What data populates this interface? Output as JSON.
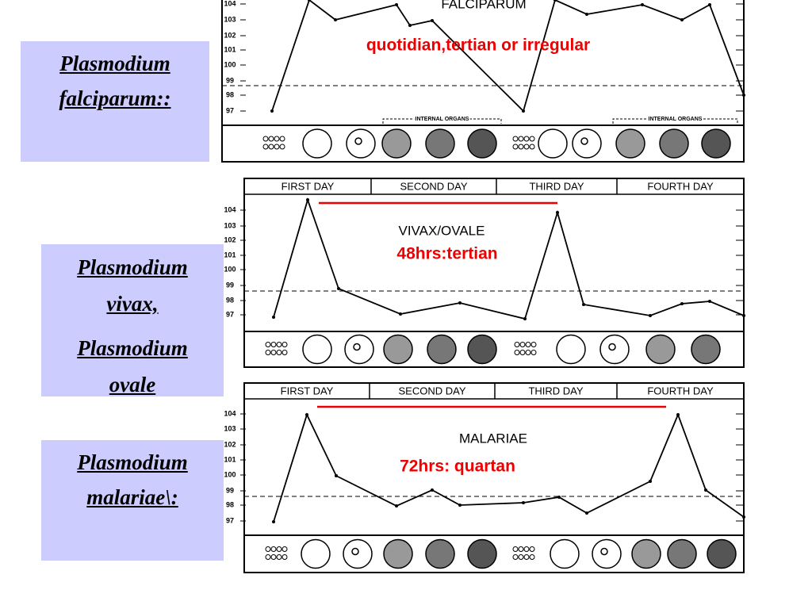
{
  "labels": [
    {
      "lines": [
        "Plasmodium",
        "falciparum::"
      ]
    },
    {
      "lines": [
        "Plasmodium",
        "vivax,",
        "Plasmodium",
        "ovale"
      ]
    },
    {
      "lines": [
        "Plasmodium",
        "malariae\\:"
      ]
    }
  ],
  "panels": [
    {
      "title": "FALCIPARUM",
      "pattern": "quotidian,tertian or irregular",
      "organs": [
        "INTERNAL ORGANS",
        "INTERNAL ORGANS"
      ],
      "ticks": [
        "104",
        "103",
        "102",
        "101",
        "100",
        "99",
        "98",
        "97"
      ]
    },
    {
      "days": [
        "FIRST DAY",
        "SECOND DAY",
        "THIRD DAY",
        "FOURTH DAY"
      ],
      "title": "VIVAX/OVALE",
      "pattern": "48hrs:tertian",
      "ticks": [
        "104",
        "103",
        "102",
        "101",
        "100",
        "99",
        "98",
        "97"
      ]
    },
    {
      "days": [
        "FIRST DAY",
        "SECOND DAY",
        "THIRD DAY",
        "FOURTH DAY"
      ],
      "title": "MALARIAE",
      "pattern": "72hrs: quartan",
      "ticks": [
        "104",
        "103",
        "102",
        "101",
        "100",
        "99",
        "98",
        "97"
      ]
    }
  ]
}
